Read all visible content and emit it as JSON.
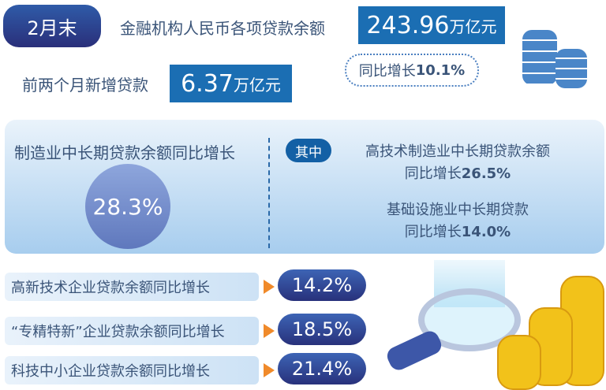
{
  "header": {
    "period": "2月末",
    "loan_balance_label": "金融机构人民币各项贷款余额",
    "loan_balance_value": "243.96",
    "loan_balance_unit": "万亿元",
    "yoy_label": "同比增长",
    "yoy_value": "10.1%",
    "new_loans_label": "前两个月新增贷款",
    "new_loans_value": "6.37",
    "new_loans_unit": "万亿元"
  },
  "manufacturing": {
    "label": "制造业中长期贷款余额同比增长",
    "value": "28.3%",
    "of_which": "其中",
    "hightech_label": "高技术制造业中长期贷款余额",
    "hightech_growth_label": "同比增长",
    "hightech_value": "26.5%",
    "infra_label": "基础设施业中长期贷款",
    "infra_growth_label": "同比增长",
    "infra_value": "14.0%"
  },
  "rows": [
    {
      "label": "高新技术企业贷款余额同比增长",
      "value": "14.2%"
    },
    {
      "label": "“专精特新”企业贷款余额同比增长",
      "value": "18.5%"
    },
    {
      "label": "科技中小企业贷款余额同比增长",
      "value": "21.4%"
    }
  ],
  "colors": {
    "primary": "#1b6eb3",
    "arrow": "#f08a2a",
    "coin": "#f2c21a"
  }
}
